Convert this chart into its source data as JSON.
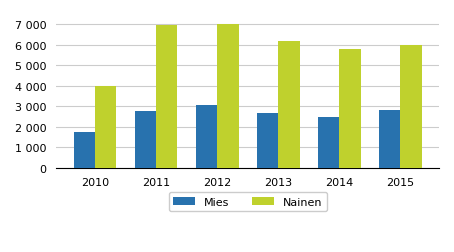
{
  "years": [
    "2010",
    "2011",
    "2012",
    "2013",
    "2014",
    "2015"
  ],
  "mies": [
    1750,
    2750,
    3050,
    2650,
    2450,
    2800
  ],
  "nainen": [
    4000,
    6950,
    7000,
    6200,
    5800,
    6000
  ],
  "mies_color": "#2872ae",
  "nainen_color": "#bfd12d",
  "ylim": [
    0,
    7500
  ],
  "yticks": [
    0,
    1000,
    2000,
    3000,
    4000,
    5000,
    6000,
    7000
  ],
  "ytick_labels": [
    "0",
    "1 000",
    "2 000",
    "3 000",
    "4 000",
    "5 000",
    "6 000",
    "7 000"
  ],
  "legend_labels": [
    "Mies",
    "Nainen"
  ],
  "background_color": "#ffffff",
  "grid_color": "#cccccc",
  "bar_width": 0.35
}
